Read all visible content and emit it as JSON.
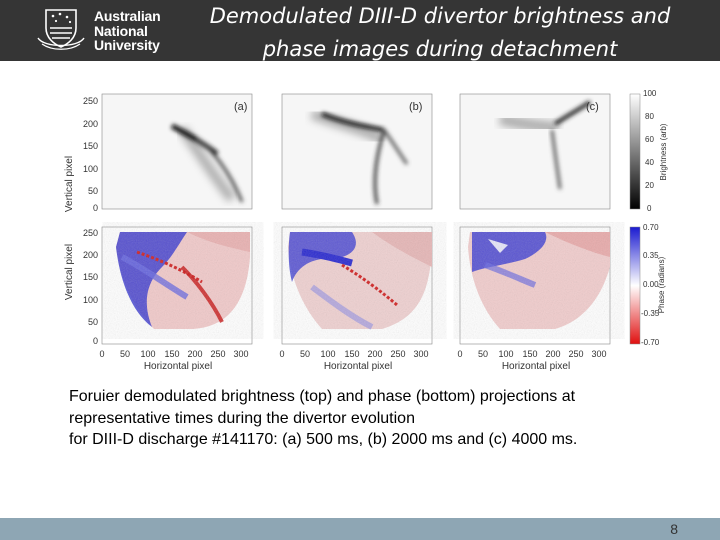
{
  "header": {
    "logo_lines": [
      "Australian",
      "National",
      "University"
    ],
    "title_line1": "Demodulated DIII-D divertor brightness and",
    "title_line2": "phase images during detachment"
  },
  "figure": {
    "panel_labels": [
      "(a)",
      "(b)",
      "(c)"
    ],
    "y_axis_label": "Vertical pixel",
    "x_axis_label": "Horizontal pixel",
    "y_ticks": [
      "250",
      "200",
      "150",
      "100",
      "50",
      "0"
    ],
    "x_ticks": [
      "0",
      "50",
      "100",
      "150",
      "200",
      "250",
      "300"
    ],
    "brightness_colorbar": {
      "label": "Brightness (arb)",
      "ticks": [
        "100",
        "80",
        "60",
        "40",
        "20",
        "0"
      ]
    },
    "phase_colorbar": {
      "label": "Phase (radians)",
      "ticks": [
        "0.70",
        "0.35",
        "0.00",
        "-0.35",
        "-0.70"
      ]
    }
  },
  "caption": {
    "line1": "Foruier demodulated brightness (top) and phase (bottom) projections at",
    "line2": "representative times during the divertor evolution",
    "line3": "for DIII-D discharge #141170: (a) 500 ms, (b) 2000 ms and (c) 4000 ms."
  },
  "footer": {
    "page_number": "8"
  },
  "colors": {
    "header_bg": "#353535",
    "footer_bg": "#8ea6b4",
    "phase_positive": "#2233cc",
    "phase_negative": "#dd2222"
  }
}
